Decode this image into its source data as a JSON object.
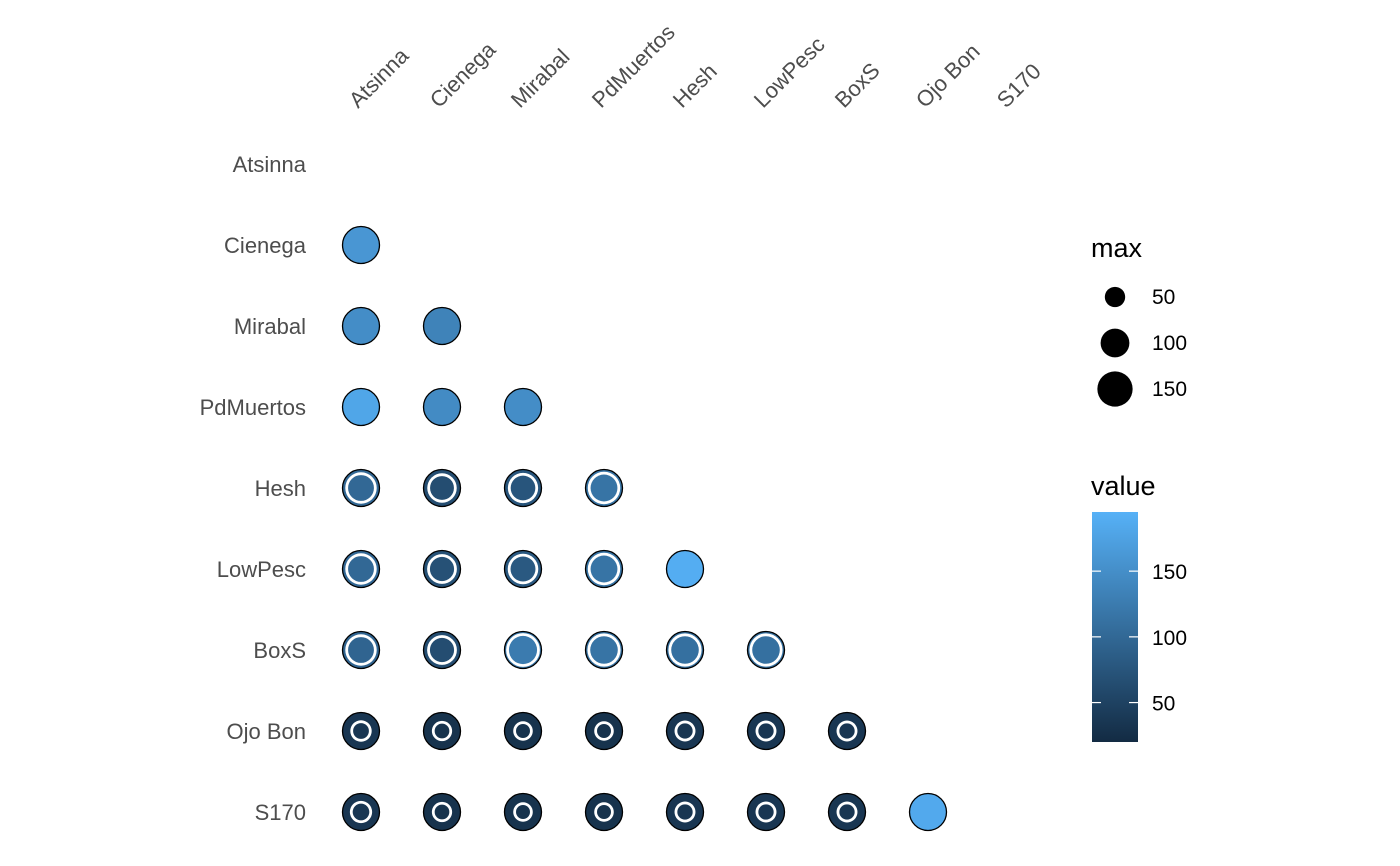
{
  "chart_data": {
    "type": "scatter",
    "x_labels": [
      "Atsinna",
      "Cienega",
      "Mirabal",
      "PdMuertos",
      "Hesh",
      "LowPesc",
      "BoxS",
      "Ojo Bon",
      "S170"
    ],
    "y_labels": [
      "Atsinna",
      "Cienega",
      "Mirabal",
      "PdMuertos",
      "Hesh",
      "LowPesc",
      "BoxS",
      "Ojo Bon",
      "S170"
    ],
    "size_legend": {
      "title": "max",
      "entries": [
        50,
        100,
        150
      ]
    },
    "color_legend": {
      "title": "value",
      "ticks": [
        50,
        100,
        150
      ],
      "range": [
        20,
        195
      ],
      "low": "#132b43",
      "high": "#56b1f7"
    },
    "points": [
      {
        "row": "Cienega",
        "col": "Atsinna",
        "max": 149,
        "value": 160
      },
      {
        "row": "Mirabal",
        "col": "Atsinna",
        "max": 149,
        "value": 148
      },
      {
        "row": "Mirabal",
        "col": "Cienega",
        "max": 149,
        "value": 135
      },
      {
        "row": "PdMuertos",
        "col": "Atsinna",
        "max": 149,
        "value": 180
      },
      {
        "row": "PdMuertos",
        "col": "Cienega",
        "max": 149,
        "value": 145
      },
      {
        "row": "PdMuertos",
        "col": "Mirabal",
        "max": 149,
        "value": 148
      },
      {
        "row": "Hesh",
        "col": "Atsinna",
        "max": 149,
        "value": 100
      },
      {
        "row": "Hesh",
        "col": "Cienega",
        "max": 149,
        "value": 65
      },
      {
        "row": "Hesh",
        "col": "Mirabal",
        "max": 149,
        "value": 75
      },
      {
        "row": "Hesh",
        "col": "PdMuertos",
        "max": 149,
        "value": 115
      },
      {
        "row": "LowPesc",
        "col": "Atsinna",
        "max": 149,
        "value": 100
      },
      {
        "row": "LowPesc",
        "col": "Cienega",
        "max": 149,
        "value": 70
      },
      {
        "row": "LowPesc",
        "col": "Mirabal",
        "max": 149,
        "value": 80
      },
      {
        "row": "LowPesc",
        "col": "PdMuertos",
        "max": 149,
        "value": 115
      },
      {
        "row": "LowPesc",
        "col": "Hesh",
        "max": 149,
        "value": 190
      },
      {
        "row": "BoxS",
        "col": "Atsinna",
        "max": 149,
        "value": 95
      },
      {
        "row": "BoxS",
        "col": "Cienega",
        "max": 149,
        "value": 65
      },
      {
        "row": "BoxS",
        "col": "Mirabal",
        "max": 149,
        "value": 125
      },
      {
        "row": "BoxS",
        "col": "PdMuertos",
        "max": 149,
        "value": 115
      },
      {
        "row": "BoxS",
        "col": "Hesh",
        "max": 149,
        "value": 110
      },
      {
        "row": "BoxS",
        "col": "LowPesc",
        "max": 149,
        "value": 110
      },
      {
        "row": "Ojo Bon",
        "col": "Atsinna",
        "max": 149,
        "value": 35
      },
      {
        "row": "Ojo Bon",
        "col": "Cienega",
        "max": 149,
        "value": 30
      },
      {
        "row": "Ojo Bon",
        "col": "Mirabal",
        "max": 149,
        "value": 30
      },
      {
        "row": "Ojo Bon",
        "col": "PdMuertos",
        "max": 149,
        "value": 30
      },
      {
        "row": "Ojo Bon",
        "col": "Hesh",
        "max": 149,
        "value": 35
      },
      {
        "row": "Ojo Bon",
        "col": "LowPesc",
        "max": 149,
        "value": 35
      },
      {
        "row": "Ojo Bon",
        "col": "BoxS",
        "max": 149,
        "value": 35
      },
      {
        "row": "S170",
        "col": "Atsinna",
        "max": 149,
        "value": 35
      },
      {
        "row": "S170",
        "col": "Cienega",
        "max": 149,
        "value": 30
      },
      {
        "row": "S170",
        "col": "Mirabal",
        "max": 149,
        "value": 30
      },
      {
        "row": "S170",
        "col": "PdMuertos",
        "max": 149,
        "value": 30
      },
      {
        "row": "S170",
        "col": "Hesh",
        "max": 149,
        "value": 35
      },
      {
        "row": "S170",
        "col": "LowPesc",
        "max": 149,
        "value": 35
      },
      {
        "row": "S170",
        "col": "BoxS",
        "max": 149,
        "value": 35
      },
      {
        "row": "S170",
        "col": "Ojo Bon",
        "max": 149,
        "value": 185
      }
    ],
    "inner_points": [
      {
        "row": "Hesh",
        "col": "Atsinna",
        "size": 105
      },
      {
        "row": "Hesh",
        "col": "Cienega",
        "size": 92
      },
      {
        "row": "Hesh",
        "col": "Mirabal",
        "size": 97
      },
      {
        "row": "Hesh",
        "col": "PdMuertos",
        "size": 112
      },
      {
        "row": "LowPesc",
        "col": "Atsinna",
        "size": 105
      },
      {
        "row": "LowPesc",
        "col": "Cienega",
        "size": 94
      },
      {
        "row": "LowPesc",
        "col": "Mirabal",
        "size": 99
      },
      {
        "row": "LowPesc",
        "col": "PdMuertos",
        "size": 112
      },
      {
        "row": "BoxS",
        "col": "Atsinna",
        "size": 105
      },
      {
        "row": "BoxS",
        "col": "Cienega",
        "size": 94
      },
      {
        "row": "BoxS",
        "col": "Mirabal",
        "size": 121
      },
      {
        "row": "BoxS",
        "col": "PdMuertos",
        "size": 117
      },
      {
        "row": "BoxS",
        "col": "Hesh",
        "size": 117
      },
      {
        "row": "BoxS",
        "col": "LowPesc",
        "size": 117
      },
      {
        "row": "Ojo Bon",
        "col": "Atsinna",
        "size": 48
      },
      {
        "row": "Ojo Bon",
        "col": "Cienega",
        "size": 43
      },
      {
        "row": "Ojo Bon",
        "col": "Mirabal",
        "size": 40
      },
      {
        "row": "Ojo Bon",
        "col": "PdMuertos",
        "size": 40
      },
      {
        "row": "Ojo Bon",
        "col": "Hesh",
        "size": 46
      },
      {
        "row": "Ojo Bon",
        "col": "LowPesc",
        "size": 46
      },
      {
        "row": "Ojo Bon",
        "col": "BoxS",
        "size": 46
      },
      {
        "row": "S170",
        "col": "Atsinna",
        "size": 52
      },
      {
        "row": "S170",
        "col": "Cienega",
        "size": 43
      },
      {
        "row": "S170",
        "col": "Mirabal",
        "size": 40
      },
      {
        "row": "S170",
        "col": "PdMuertos",
        "size": 40
      },
      {
        "row": "S170",
        "col": "Hesh",
        "size": 46
      },
      {
        "row": "S170",
        "col": "LowPesc",
        "size": 46
      },
      {
        "row": "S170",
        "col": "BoxS",
        "size": 46
      }
    ],
    "grid": false,
    "legend_position": "right"
  }
}
